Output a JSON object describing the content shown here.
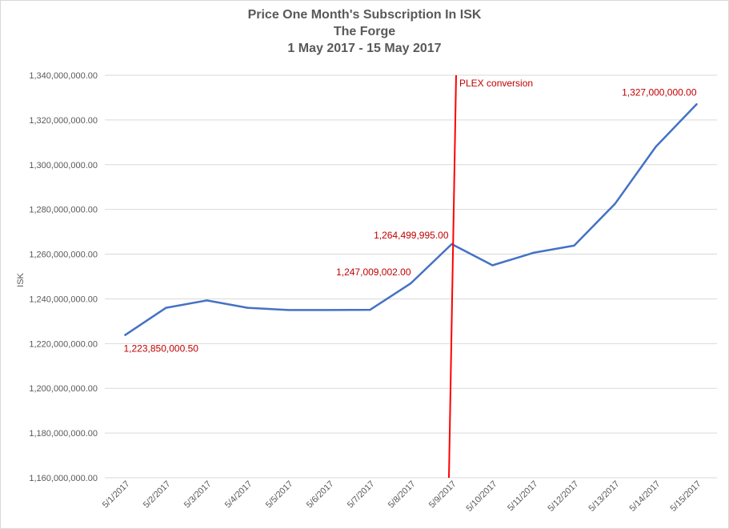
{
  "chart_data": {
    "type": "line",
    "title": "Price One Month's Subscription In ISK",
    "subtitle": "The Forge",
    "subtitle2": "1 May 2017 - 15 May 2017",
    "xlabel": "",
    "ylabel": "ISK",
    "categories": [
      "5/1/2017",
      "5/2/2017",
      "5/3/2017",
      "5/4/2017",
      "5/5/2017",
      "5/6/2017",
      "5/7/2017",
      "5/8/2017",
      "5/9/2017",
      "5/10/2017",
      "5/11/2017",
      "5/12/2017",
      "5/13/2017",
      "5/14/2017",
      "5/15/2017"
    ],
    "series": [
      {
        "values": [
          1223850000.5,
          1236000000,
          1239300000,
          1236000000,
          1235000000,
          1235000000,
          1235100000,
          1247009002,
          1264499995,
          1255000000,
          1260600000,
          1263800000,
          1282500000,
          1308000000,
          1327000000
        ],
        "color": "#4472c4"
      }
    ],
    "ylim": [
      1160000000,
      1340000000
    ],
    "yticks": [
      1160000000,
      1180000000,
      1200000000,
      1220000000,
      1240000000,
      1260000000,
      1280000000,
      1300000000,
      1320000000,
      1340000000
    ],
    "ytick_labels": [
      "1,160,000,000.00",
      "1,180,000,000.00",
      "1,200,000,000.00",
      "1,220,000,000.00",
      "1,240,000,000.00",
      "1,260,000,000.00",
      "1,280,000,000.00",
      "1,300,000,000.00",
      "1,320,000,000.00",
      "1,340,000,000.00"
    ],
    "grid": true,
    "annotations": [
      {
        "index": 0,
        "text": "1,223,850,000.50",
        "color": "#c00000"
      },
      {
        "index": 7,
        "text": "1,247,009,002.00",
        "color": "#c00000"
      },
      {
        "index": 8,
        "text": "1,264,499,995.00",
        "color": "#c00000"
      },
      {
        "index": 14,
        "text": "1,327,000,000.00",
        "color": "#c00000"
      }
    ],
    "marker_line": {
      "label": "PLEX conversion",
      "color": "#ff0000"
    }
  }
}
